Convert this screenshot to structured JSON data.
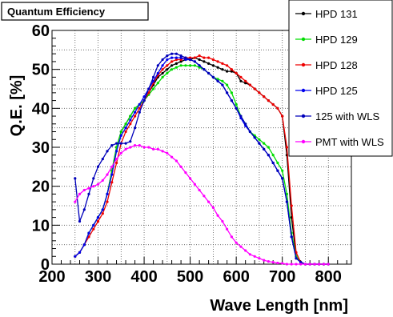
{
  "chart_data": {
    "type": "line",
    "title": "Quantum Efficiency",
    "xlabel": "Wave Length [nm]",
    "ylabel": "Q.E. [%]",
    "xlim": [
      200,
      850
    ],
    "ylim": [
      0,
      60
    ],
    "xticks": [
      200,
      300,
      400,
      500,
      600,
      700,
      800
    ],
    "yticks": [
      0,
      10,
      20,
      30,
      40,
      50,
      60
    ],
    "grid": true,
    "legend_position": "top-right",
    "series": [
      {
        "name": "HPD 131",
        "color": "#000000",
        "x": [
          250,
          260,
          270,
          280,
          290,
          300,
          310,
          320,
          330,
          340,
          350,
          360,
          370,
          380,
          390,
          400,
          410,
          420,
          430,
          440,
          450,
          460,
          470,
          480,
          490,
          500,
          510,
          520,
          530,
          540,
          550,
          560,
          570,
          580,
          590,
          600,
          610,
          620,
          630,
          640,
          650,
          660,
          670,
          680,
          690,
          700,
          710,
          720,
          730,
          740,
          750,
          760,
          770,
          780,
          790,
          800
        ],
        "y": [
          2,
          3,
          5,
          8,
          10,
          12,
          14,
          18,
          24,
          30,
          34,
          36,
          38,
          40,
          41,
          42,
          44,
          46,
          48,
          49,
          50,
          51,
          51.5,
          52,
          52.5,
          52.5,
          53,
          52.5,
          52,
          51.5,
          51,
          50.5,
          50,
          49.5,
          49.5,
          49,
          47,
          46.5,
          46,
          45,
          44,
          43,
          42,
          41,
          40,
          38,
          28,
          12,
          2,
          0.5,
          0,
          0,
          0,
          0,
          0,
          0
        ]
      },
      {
        "name": "HPD 129",
        "color": "#00dd00",
        "x": [
          250,
          260,
          270,
          280,
          290,
          300,
          310,
          320,
          330,
          340,
          350,
          360,
          370,
          380,
          390,
          400,
          410,
          420,
          430,
          440,
          450,
          460,
          470,
          480,
          490,
          500,
          510,
          520,
          530,
          540,
          550,
          560,
          570,
          580,
          590,
          600,
          610,
          620,
          630,
          640,
          650,
          660,
          670,
          680,
          690,
          700,
          710,
          720,
          730,
          740,
          750,
          760,
          770,
          780,
          790,
          800
        ],
        "y": [
          2,
          3,
          5,
          8,
          10,
          12,
          14,
          18,
          24,
          30,
          34,
          36,
          38,
          40,
          41,
          42,
          43.5,
          45,
          46.5,
          48,
          49,
          50,
          50.5,
          51,
          51,
          51,
          51,
          50.5,
          50,
          49,
          48,
          47.5,
          47,
          46,
          44,
          41,
          38,
          36,
          34,
          33,
          32,
          31,
          30,
          28,
          26,
          24,
          18,
          8,
          2,
          0.5,
          0,
          0,
          0,
          0,
          0,
          0
        ]
      },
      {
        "name": "HPD 128",
        "color": "#ee0000",
        "x": [
          250,
          260,
          270,
          280,
          290,
          300,
          310,
          320,
          330,
          340,
          350,
          360,
          370,
          380,
          390,
          400,
          410,
          420,
          430,
          440,
          450,
          460,
          470,
          480,
          490,
          500,
          510,
          520,
          530,
          540,
          550,
          560,
          570,
          580,
          590,
          600,
          610,
          620,
          630,
          640,
          650,
          660,
          670,
          680,
          690,
          700,
          710,
          720,
          730,
          740,
          750,
          760,
          770,
          780,
          790,
          800
        ],
        "y": [
          2,
          3,
          5,
          7,
          9,
          11,
          13,
          16,
          21,
          26,
          31,
          34,
          36,
          38,
          40,
          42,
          44,
          46.5,
          48.5,
          50,
          51,
          52,
          52.5,
          52.5,
          53,
          53,
          53,
          53.5,
          53,
          53,
          52.5,
          52,
          51.5,
          51,
          50,
          49,
          48,
          47,
          46,
          45,
          44,
          43,
          42,
          41,
          40,
          38,
          30,
          15,
          3,
          0.5,
          0,
          0,
          0,
          0,
          0,
          0
        ]
      },
      {
        "name": "HPD 125",
        "color": "#0000ee",
        "x": [
          250,
          260,
          270,
          280,
          290,
          300,
          310,
          320,
          330,
          340,
          350,
          360,
          370,
          380,
          390,
          400,
          410,
          420,
          430,
          440,
          450,
          460,
          470,
          480,
          490,
          500,
          510,
          520,
          530,
          540,
          550,
          560,
          570,
          580,
          590,
          600,
          610,
          620,
          630,
          640,
          650,
          660,
          670,
          680,
          690,
          700,
          710,
          720,
          730,
          740,
          750,
          760,
          770,
          780,
          790,
          800
        ],
        "y": [
          2,
          3,
          5,
          8,
          10,
          12,
          14,
          18,
          23,
          29,
          33,
          35,
          37,
          39,
          41,
          43,
          45,
          47,
          49,
          51,
          52.5,
          53,
          53,
          53,
          52.5,
          52.5,
          52,
          51,
          50,
          49,
          48,
          47,
          46,
          44,
          42,
          40,
          37.5,
          35.5,
          34,
          32.5,
          31,
          29.5,
          28,
          26,
          24,
          22,
          16,
          7,
          1.5,
          0.5,
          0,
          0,
          0,
          0,
          0,
          0
        ]
      },
      {
        "name": "125 with WLS",
        "color": "#0000bb",
        "x": [
          250,
          260,
          270,
          280,
          290,
          300,
          310,
          320,
          330,
          340,
          350,
          360,
          370,
          380,
          390,
          400,
          410,
          420,
          430,
          440,
          450,
          460,
          470,
          480,
          490,
          500,
          510,
          520,
          530,
          540,
          550,
          560,
          570,
          580,
          590,
          600,
          610,
          620,
          630,
          640,
          650,
          660,
          670,
          680,
          690,
          700,
          710,
          720,
          730,
          740,
          750,
          760,
          770,
          780,
          790,
          800
        ],
        "y": [
          22,
          11,
          14,
          18,
          22,
          25,
          27,
          29,
          30.5,
          31,
          31,
          31,
          31.5,
          35,
          39,
          42,
          45,
          48,
          51,
          52.5,
          53.5,
          54,
          54,
          53.5,
          53,
          52.5,
          52,
          51,
          50,
          49,
          48,
          47,
          46,
          44,
          42,
          40,
          38,
          36,
          34,
          32.5,
          31,
          29.5,
          28,
          26,
          24,
          22,
          16,
          7,
          1.5,
          0.5,
          0,
          0,
          0,
          0,
          0,
          0
        ]
      },
      {
        "name": "PMT with WLS",
        "color": "#ff00ff",
        "x": [
          250,
          260,
          270,
          280,
          290,
          300,
          310,
          320,
          330,
          340,
          350,
          360,
          370,
          380,
          390,
          400,
          410,
          420,
          430,
          440,
          450,
          460,
          470,
          480,
          490,
          500,
          510,
          520,
          530,
          540,
          550,
          560,
          570,
          580,
          590,
          600,
          610,
          620,
          630,
          640,
          650,
          660,
          670,
          680,
          690,
          700,
          710,
          720,
          730,
          740,
          750,
          760,
          770,
          780,
          790,
          800
        ],
        "y": [
          16,
          18,
          19,
          19.5,
          20,
          20.5,
          21.5,
          23,
          25,
          27,
          28.5,
          29.5,
          30,
          30.5,
          30.5,
          30,
          30,
          29.5,
          29.5,
          29,
          28.5,
          27.5,
          26.5,
          25,
          23.5,
          22,
          20.5,
          19,
          17.5,
          16,
          14.5,
          12.5,
          11,
          9,
          7,
          5.5,
          4.5,
          3.5,
          2.5,
          2,
          1.5,
          1,
          0.7,
          0.5,
          0.3,
          0.2,
          0,
          0,
          0,
          0,
          0,
          0,
          0,
          0,
          0,
          0
        ]
      }
    ]
  }
}
